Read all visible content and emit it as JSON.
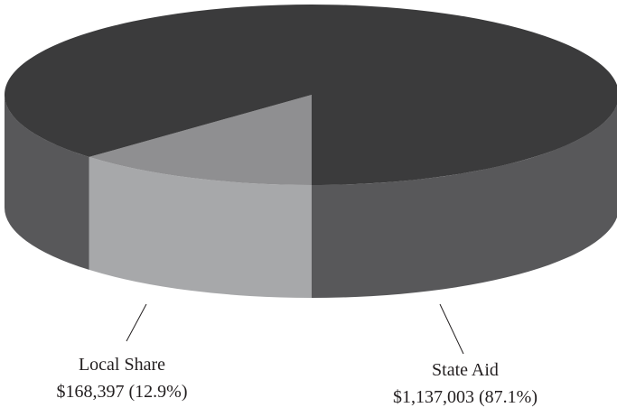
{
  "chart_data": {
    "type": "pie3d",
    "categories": [
      "Local Share",
      "State Aid"
    ],
    "values": [
      168397,
      1137003
    ],
    "value_labels": [
      "$168,397 (12.9%)",
      "$1,137,003 (87.1%)"
    ],
    "colors": [
      "#8f8f91",
      "#3b3b3c"
    ],
    "side_colors": [
      "#a7a8aa",
      "#58585a"
    ]
  }
}
